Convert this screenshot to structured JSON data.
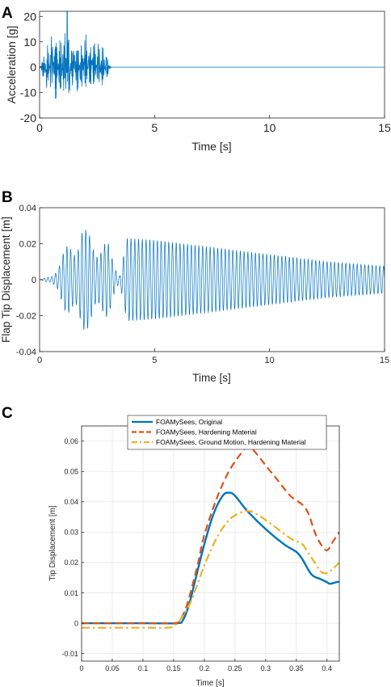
{
  "chart_data": [
    {
      "panel": "A",
      "type": "line",
      "xlabel": "Time [s]",
      "ylabel": "Acceleration [g]",
      "xlim": [
        0,
        15
      ],
      "ylim": [
        -20,
        22
      ],
      "xticks": [
        0,
        5,
        10,
        15
      ],
      "yticks": [
        -20,
        -10,
        0,
        10,
        20
      ],
      "grid": false,
      "colors": {
        "line": "#0072BD"
      },
      "signal": {
        "active_until": 3.1,
        "envelope_peak": 22,
        "after": 0
      },
      "series": [
        {
          "x": [
            0,
            0.2,
            0.4,
            0.6,
            0.8,
            1.0,
            1.2,
            1.4,
            1.6,
            1.8,
            2.0,
            2.2,
            2.4,
            2.6,
            2.8,
            3.0,
            3.1,
            5,
            10,
            15
          ],
          "y": [
            0,
            9,
            14,
            18,
            16,
            17,
            22,
            18,
            15,
            13,
            16,
            14,
            13,
            12,
            10,
            6,
            0,
            0,
            0,
            0
          ]
        }
      ]
    },
    {
      "panel": "B",
      "type": "line",
      "xlabel": "Time [s]",
      "ylabel": "Flap Tip Displacement [m]",
      "xlim": [
        0,
        15
      ],
      "ylim": [
        -0.04,
        0.04
      ],
      "xticks": [
        0,
        5,
        10,
        15
      ],
      "yticks": [
        -0.04,
        -0.02,
        0,
        0.02,
        0.04
      ],
      "grid": false,
      "colors": {
        "line": "#0072BD"
      },
      "series": [
        {
          "x": [
            0,
            0.5,
            1.0,
            1.5,
            1.8,
            2.0,
            2.5,
            3.0,
            3.5,
            3.8,
            5,
            7.5,
            10,
            12.5,
            15
          ],
          "y": [
            0,
            0.002,
            0.015,
            0.025,
            0.034,
            0.028,
            0.025,
            0.02,
            0.003,
            0.023,
            0.022,
            0.018,
            0.014,
            0.01,
            0.0075
          ]
        }
      ]
    },
    {
      "panel": "C",
      "type": "line",
      "xlabel": "Time [s]",
      "ylabel": "Tip Displacement [m]",
      "xlim": [
        0,
        0.42
      ],
      "ylim": [
        -0.0125,
        0.065
      ],
      "xticks": [
        0,
        0.05,
        0.1,
        0.15,
        0.2,
        0.25,
        0.3,
        0.35,
        0.4
      ],
      "yticks": [
        -0.01,
        0,
        0.01,
        0.02,
        0.03,
        0.04,
        0.05,
        0.06
      ],
      "grid": true,
      "legend": "top",
      "series": [
        {
          "name": "FOAMySees, Original",
          "color": "#0072BD",
          "dash": "solid",
          "x": [
            0,
            0.1,
            0.155,
            0.165,
            0.175,
            0.185,
            0.2,
            0.215,
            0.23,
            0.24,
            0.25,
            0.27,
            0.3,
            0.33,
            0.35,
            0.36,
            0.375,
            0.39,
            0.4,
            0.405,
            0.415,
            0.42
          ],
          "y": [
            0,
            0,
            0,
            0.001,
            0.006,
            0.014,
            0.026,
            0.036,
            0.042,
            0.043,
            0.042,
            0.037,
            0.031,
            0.026,
            0.0235,
            0.021,
            0.016,
            0.0145,
            0.0135,
            0.013,
            0.0135,
            0.0137
          ]
        },
        {
          "name": "FOAMySees, Hardening Material",
          "color": "#D95319",
          "dash": "dashed",
          "x": [
            0,
            0.1,
            0.15,
            0.16,
            0.17,
            0.18,
            0.19,
            0.2,
            0.22,
            0.24,
            0.26,
            0.27,
            0.28,
            0.3,
            0.32,
            0.34,
            0.36,
            0.37,
            0.38,
            0.39,
            0.4,
            0.41,
            0.42
          ],
          "y": [
            0,
            0,
            0,
            0.001,
            0.005,
            0.012,
            0.02,
            0.029,
            0.041,
            0.05,
            0.056,
            0.058,
            0.057,
            0.052,
            0.047,
            0.042,
            0.039,
            0.036,
            0.03,
            0.026,
            0.024,
            0.027,
            0.03
          ]
        },
        {
          "name": "FOAMySees, Ground Motion, Hardening Material",
          "color": "#EDB120",
          "dash": "dashdot",
          "x": [
            0,
            0.1,
            0.14,
            0.15,
            0.16,
            0.17,
            0.18,
            0.2,
            0.22,
            0.24,
            0.26,
            0.27,
            0.28,
            0.3,
            0.32,
            0.34,
            0.35,
            0.36,
            0.37,
            0.38,
            0.39,
            0.4,
            0.41,
            0.42
          ],
          "y": [
            -0.0015,
            -0.0015,
            -0.0015,
            -0.001,
            0.001,
            0.004,
            0.008,
            0.019,
            0.028,
            0.034,
            0.0365,
            0.037,
            0.0365,
            0.034,
            0.031,
            0.028,
            0.027,
            0.026,
            0.023,
            0.02,
            0.017,
            0.0165,
            0.018,
            0.02
          ]
        }
      ]
    }
  ]
}
